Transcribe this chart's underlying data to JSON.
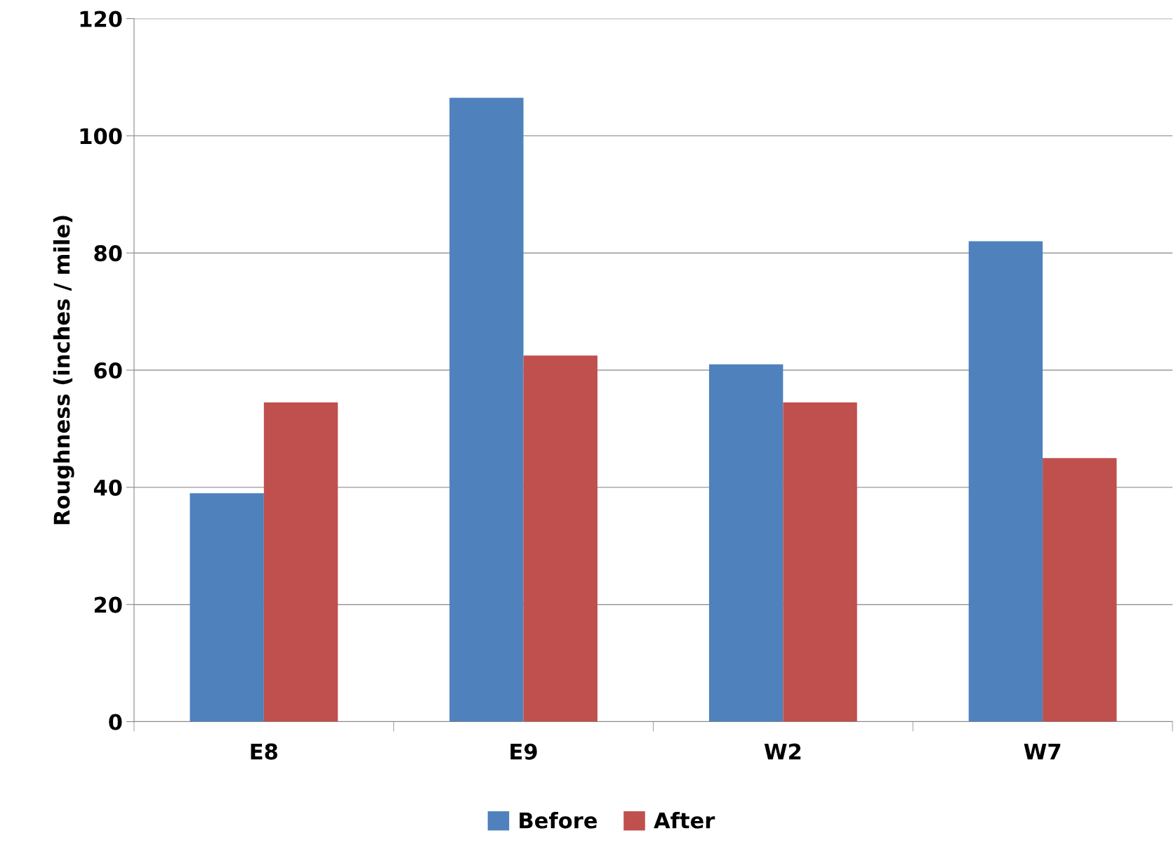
{
  "chart_data": {
    "type": "bar",
    "ylabel": "Roughness (inches / mile)",
    "categories": [
      "E8",
      "E9",
      "W2",
      "W7"
    ],
    "series": [
      {
        "name": "Before",
        "color": "#4f81bd",
        "values": [
          39,
          106.5,
          61,
          82
        ]
      },
      {
        "name": "After",
        "color": "#c0504d",
        "values": [
          54.5,
          62.5,
          54.5,
          45
        ]
      }
    ],
    "ylim": [
      0,
      120
    ],
    "yticks": [
      0,
      20,
      40,
      60,
      80,
      100,
      120
    ],
    "grid": "y",
    "legend": "bottom"
  }
}
